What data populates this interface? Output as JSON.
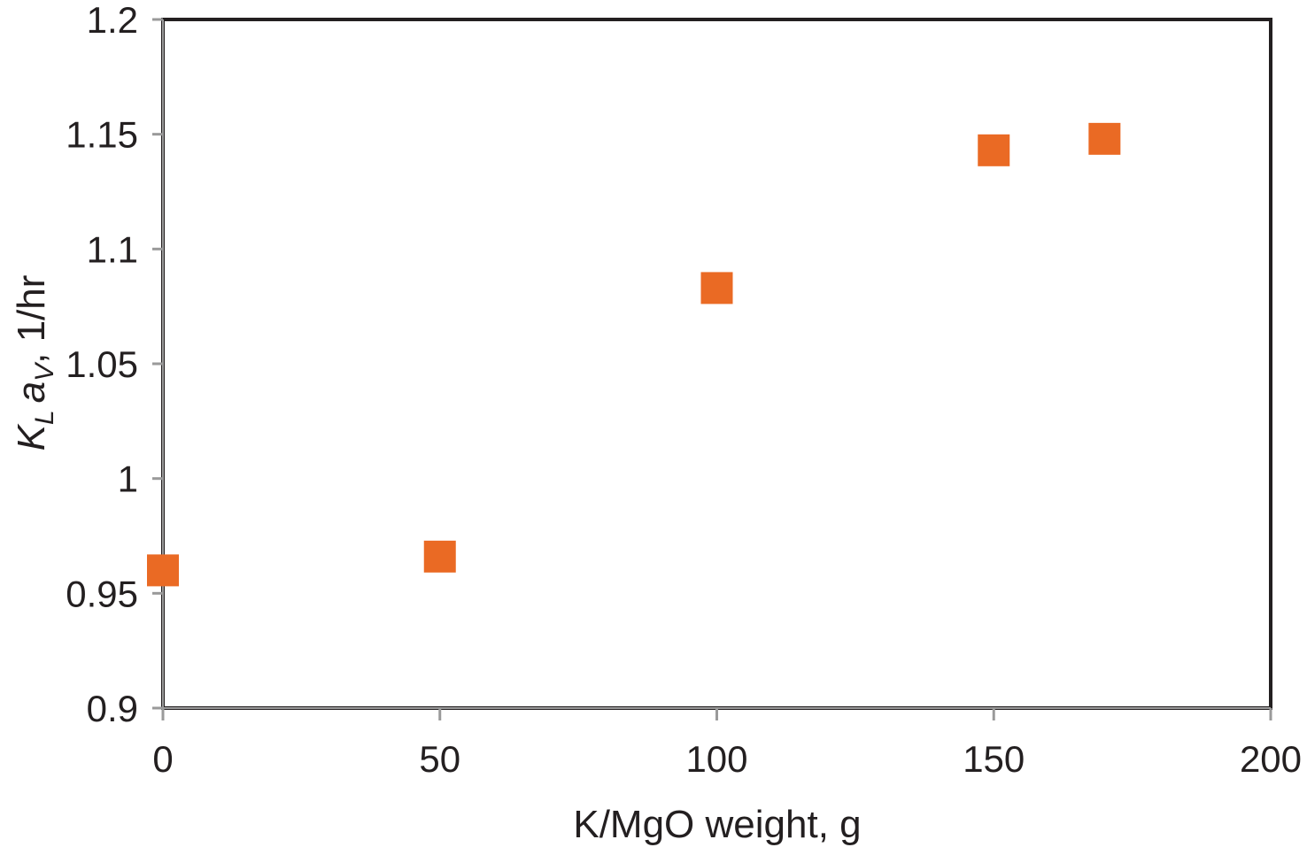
{
  "chart_data": {
    "type": "scatter",
    "title": "",
    "xlabel": "K/MgO weight, g",
    "ylabel": {
      "main_k": "K",
      "sub_l": "L",
      "main_a": "a",
      "sub_v": "V",
      "suffix": ", 1/hr"
    },
    "xlim": [
      0,
      200
    ],
    "ylim": [
      0.9,
      1.2
    ],
    "x_ticks": [
      0,
      50,
      100,
      150,
      200
    ],
    "x_tick_labels": [
      "0",
      "50",
      "100",
      "150",
      "200"
    ],
    "y_ticks": [
      0.9,
      0.95,
      1.0,
      1.05,
      1.1,
      1.15,
      1.2
    ],
    "y_tick_labels": [
      "0.9",
      "0.95",
      "1",
      "1.05",
      "1.1",
      "1.15",
      "1.2"
    ],
    "grid": false,
    "legend": "none",
    "series": [
      {
        "name": "KLaV",
        "marker": "square",
        "color": "#EA6A24",
        "x": [
          0,
          50,
          100,
          150,
          170
        ],
        "y": [
          0.96,
          0.966,
          1.083,
          1.143,
          1.148
        ]
      }
    ]
  }
}
